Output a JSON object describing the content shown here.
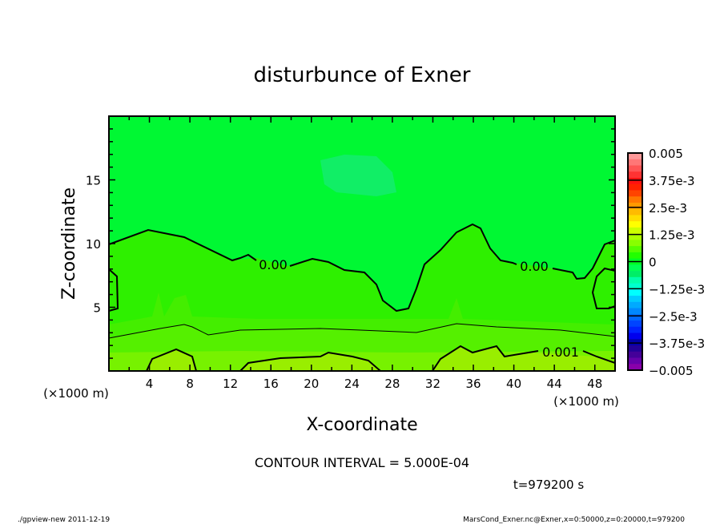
{
  "chart_data": {
    "type": "heatmap",
    "subtype": "filled-contour",
    "title": "disturbunce of Exner",
    "xlabel": "X-coordinate",
    "ylabel": "Z-coordinate",
    "x_unit_label": "(×1000 m)",
    "z_unit_label": "(×1000 m)",
    "xlim": [
      0,
      50
    ],
    "ylim": [
      0,
      20
    ],
    "x_ticks": [
      "4",
      "8",
      "12",
      "16",
      "20",
      "24",
      "28",
      "32",
      "36",
      "40",
      "44",
      "48"
    ],
    "y_ticks": [
      "5",
      "10",
      "15"
    ],
    "contour_labels": [
      "0.00",
      "0.00",
      "0.001"
    ],
    "contour_interval_text": "CONTOUR INTERVAL = 5.000E-04",
    "time_text": "t=979200 s",
    "colorbar": {
      "range": [
        -0.005,
        0.005
      ],
      "labels": [
        "0.005",
        "3.75e-3",
        "2.5e-3",
        "1.25e-3",
        "0",
        "-1.25e-3",
        "-2.5e-3",
        "-3.75e-3",
        "-0.005"
      ],
      "colors": [
        "#ff9999",
        "#ff7777",
        "#ff5555",
        "#ff3333",
        "#ff1111",
        "#ff2200",
        "#ff4400",
        "#ff7700",
        "#ff9900",
        "#ffbb00",
        "#ffdd00",
        "#ffff00",
        "#ccff00",
        "#aaff00",
        "#88ff00",
        "#55ff00",
        "#22ff00",
        "#00ff22",
        "#00ff55",
        "#00ee66",
        "#00ffaa",
        "#00ffcc",
        "#00ffff",
        "#00ccff",
        "#00aaff",
        "#0088ff",
        "#0066ff",
        "#0044ff",
        "#0022ff",
        "#0000ee",
        "#0000aa",
        "#220099",
        "#440099",
        "#6600aa",
        "#8800aa"
      ]
    }
  },
  "footer": {
    "left": "./gpview-new  2011-12-19",
    "right": "MarsCond_Exner.nc@Exner,x=0:50000,z=0:20000,t=979200"
  }
}
